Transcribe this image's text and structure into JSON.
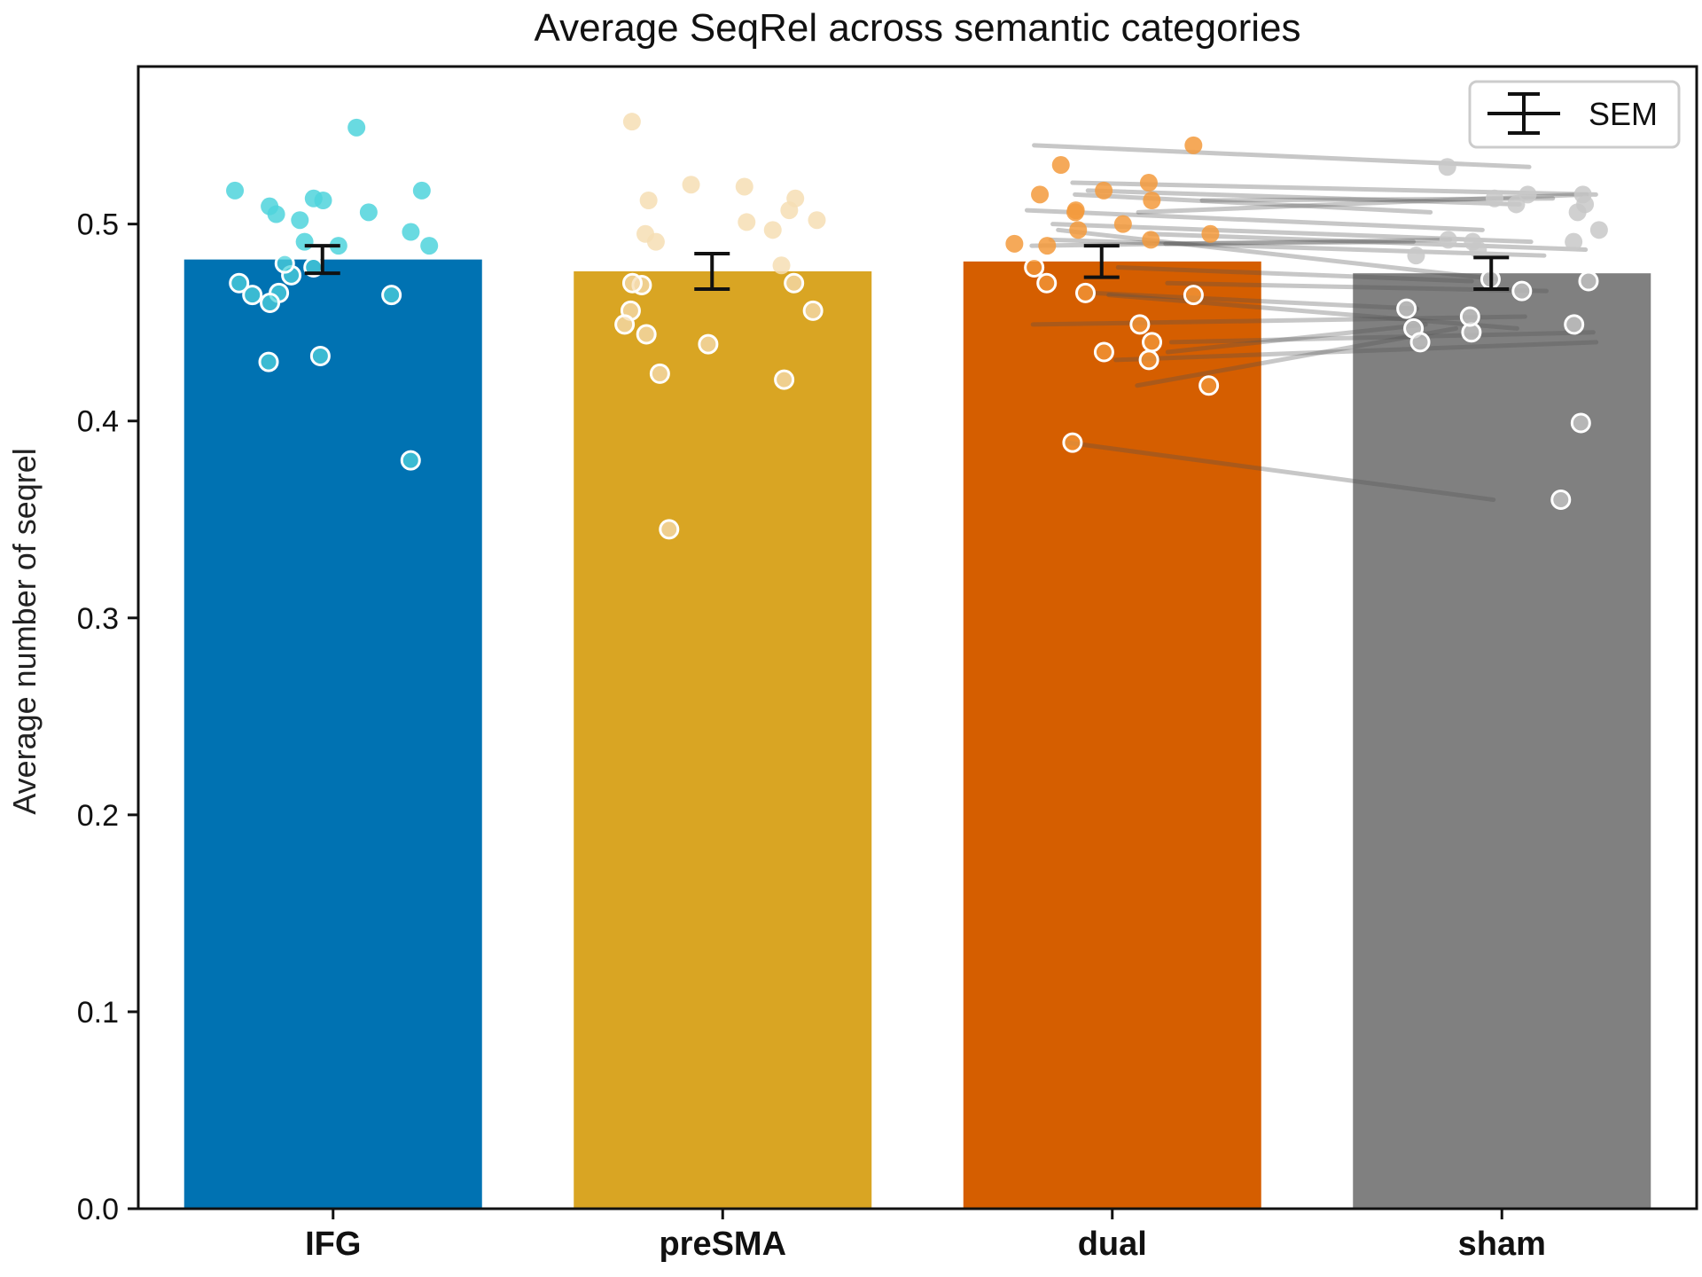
{
  "chart_data": {
    "type": "bar",
    "title": "Average SeqRel across semantic categories",
    "xlabel": "",
    "ylabel": "Average number of seqrel",
    "ylim": [
      0,
      0.58
    ],
    "yticks": [
      "0.0",
      "0.1",
      "0.2",
      "0.3",
      "0.4",
      "0.5"
    ],
    "categories": [
      "IFG",
      "preSMA",
      "dual",
      "sham"
    ],
    "values": [
      0.482,
      0.476,
      0.481,
      0.475
    ],
    "sem": [
      0.007,
      0.009,
      0.008,
      0.008
    ],
    "bar_colors": [
      "#0072b2",
      "#d9a523",
      "#d55e00",
      "#808080"
    ],
    "point_colors": [
      "#4fd3dc",
      "#f6deb4",
      "#f39a3c",
      "#c8c8c8"
    ],
    "legend": {
      "label": "SEM",
      "position": "top-right"
    },
    "points": [
      {
        "category": "IFG",
        "values": [
          0.474,
          0.478,
          0.465,
          0.47,
          0.46,
          0.464,
          0.464,
          0.433,
          0.43,
          0.38,
          0.48,
          0.517,
          0.505,
          0.502,
          0.512,
          0.517,
          0.509,
          0.549,
          0.513,
          0.506,
          0.496,
          0.489,
          0.491,
          0.489
        ]
      },
      {
        "category": "preSMA",
        "values": [
          0.469,
          0.456,
          0.47,
          0.449,
          0.444,
          0.47,
          0.456,
          0.439,
          0.424,
          0.421,
          0.345,
          0.519,
          0.52,
          0.512,
          0.501,
          0.491,
          0.495,
          0.502,
          0.507,
          0.513,
          0.497,
          0.552,
          0.479
        ]
      },
      {
        "category": "dual",
        "values": [
          0.47,
          0.465,
          0.464,
          0.478,
          0.44,
          0.435,
          0.449,
          0.418,
          0.431,
          0.389,
          0.506,
          0.495,
          0.5,
          0.512,
          0.507,
          0.497,
          0.53,
          0.517,
          0.521,
          0.515,
          0.54,
          0.489,
          0.49,
          0.492
        ]
      },
      {
        "category": "sham",
        "values": [
          0.471,
          0.472,
          0.466,
          0.457,
          0.447,
          0.449,
          0.445,
          0.453,
          0.44,
          0.399,
          0.36,
          0.513,
          0.51,
          0.515,
          0.506,
          0.497,
          0.491,
          0.487,
          0.484,
          0.529,
          0.515,
          0.51,
          0.492,
          0.491
        ]
      }
    ],
    "pairs": [
      [
        0.54,
        0.529
      ],
      [
        0.521,
        0.515
      ],
      [
        0.517,
        0.51
      ],
      [
        0.515,
        0.506
      ],
      [
        0.512,
        0.513
      ],
      [
        0.507,
        0.497
      ],
      [
        0.506,
        0.515
      ],
      [
        0.5,
        0.491
      ],
      [
        0.497,
        0.472
      ],
      [
        0.495,
        0.487
      ],
      [
        0.492,
        0.484
      ],
      [
        0.49,
        0.491
      ],
      [
        0.489,
        0.492
      ],
      [
        0.478,
        0.471
      ],
      [
        0.47,
        0.466
      ],
      [
        0.465,
        0.457
      ],
      [
        0.464,
        0.447
      ],
      [
        0.449,
        0.453
      ],
      [
        0.44,
        0.445
      ],
      [
        0.435,
        0.449
      ],
      [
        0.431,
        0.44
      ],
      [
        0.418,
        0.447
      ],
      [
        0.389,
        0.36
      ]
    ]
  }
}
